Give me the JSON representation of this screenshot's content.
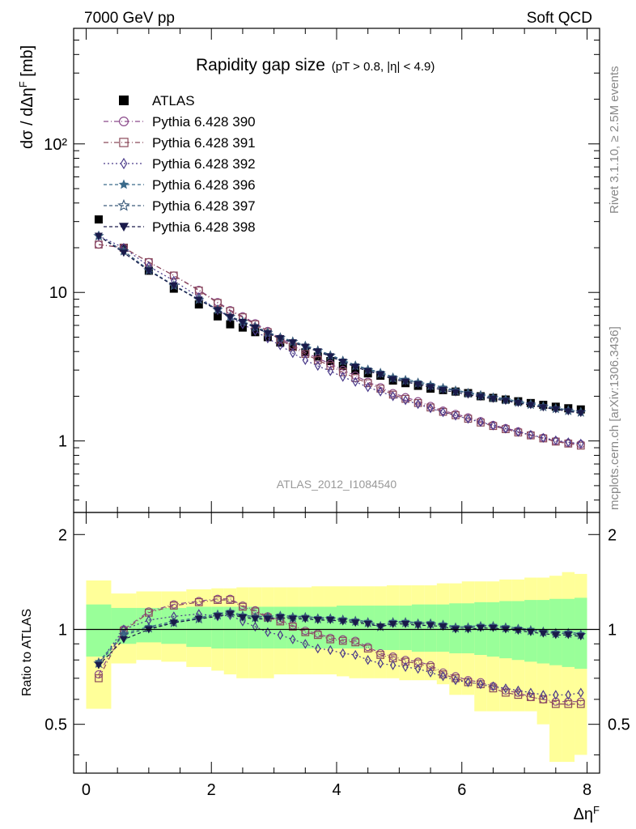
{
  "header": {
    "left": "7000 GeV pp",
    "right": "Soft QCD"
  },
  "side_labels": {
    "rivet": "Rivet 3.1.10, ≥ 2.5M events",
    "mcplots": "mcplots.cern.ch [arXiv:1306.3436]"
  },
  "analysis_id": "ATLAS_2012_I1084540",
  "chart_data": [
    {
      "type": "scatter",
      "panel": "main",
      "title": "Rapidity gap size",
      "subtitle": "(pT > 0.8, |η| < 4.9)",
      "ylabel": "dσ / dΔηF [mb]",
      "xlabel": "",
      "xlim": [
        -0.2,
        8.2
      ],
      "ylim": [
        0.33,
        600
      ],
      "yscale": "log",
      "ytick_labels": [
        "1",
        "10",
        "10²"
      ],
      "legend_position": "upper-left",
      "x": [
        0.2,
        0.6,
        1.0,
        1.4,
        1.8,
        2.1,
        2.3,
        2.5,
        2.7,
        2.9,
        3.1,
        3.3,
        3.5,
        3.7,
        3.9,
        4.1,
        4.3,
        4.5,
        4.7,
        4.9,
        5.1,
        5.3,
        5.5,
        5.7,
        5.9,
        6.1,
        6.3,
        6.5,
        6.7,
        6.9,
        7.1,
        7.3,
        7.5,
        7.7,
        7.9
      ],
      "series": [
        {
          "name": "ATLAS",
          "color": "#000000",
          "marker": "filled-square",
          "values": [
            31,
            20,
            14,
            10.6,
            8.3,
            6.9,
            6.1,
            5.8,
            5.4,
            5.0,
            4.6,
            4.3,
            3.95,
            3.7,
            3.45,
            3.2,
            3.0,
            2.85,
            2.75,
            2.55,
            2.45,
            2.35,
            2.25,
            2.2,
            2.15,
            2.1,
            2.0,
            1.95,
            1.9,
            1.85,
            1.8,
            1.75,
            1.7,
            1.66,
            1.63
          ]
        },
        {
          "name": "Pythia 6.428 390",
          "color": "#8b4a8b",
          "marker": "open-circle",
          "values": [
            21,
            20,
            16,
            13,
            10.4,
            8.6,
            7.6,
            6.9,
            6.2,
            5.5,
            4.9,
            4.4,
            3.95,
            3.6,
            3.3,
            3.0,
            2.75,
            2.5,
            2.3,
            2.1,
            1.97,
            1.85,
            1.72,
            1.6,
            1.52,
            1.44,
            1.36,
            1.28,
            1.22,
            1.16,
            1.1,
            1.05,
            1.0,
            0.97,
            0.95
          ]
        },
        {
          "name": "Pythia 6.428 391",
          "color": "#8b4a5a",
          "marker": "open-square",
          "values": [
            21,
            20,
            16,
            13,
            10.3,
            8.5,
            7.5,
            6.8,
            6.1,
            5.4,
            4.8,
            4.3,
            3.85,
            3.5,
            3.2,
            2.9,
            2.65,
            2.45,
            2.25,
            2.05,
            1.92,
            1.8,
            1.68,
            1.57,
            1.49,
            1.41,
            1.33,
            1.26,
            1.2,
            1.14,
            1.09,
            1.04,
            0.99,
            0.96,
            0.93
          ]
        },
        {
          "name": "Pythia 6.428 392",
          "color": "#4a3a8a",
          "marker": "open-diamond",
          "values": [
            24,
            20,
            15,
            12,
            9.3,
            7.6,
            6.8,
            6.1,
            5.5,
            4.9,
            4.4,
            3.9,
            3.5,
            3.2,
            2.95,
            2.7,
            2.5,
            2.3,
            2.15,
            2.0,
            1.88,
            1.77,
            1.66,
            1.56,
            1.48,
            1.41,
            1.34,
            1.27,
            1.21,
            1.15,
            1.1,
            1.05,
            1.01,
            0.98,
            0.96
          ]
        },
        {
          "name": "Pythia 6.428 396",
          "color": "#3a6a8a",
          "marker": "filled-star",
          "values": [
            24,
            19,
            14.2,
            11.2,
            9.0,
            7.7,
            6.9,
            6.4,
            5.9,
            5.4,
            5.0,
            4.7,
            4.4,
            4.1,
            3.8,
            3.5,
            3.25,
            3.05,
            2.9,
            2.7,
            2.6,
            2.5,
            2.4,
            2.3,
            2.2,
            2.12,
            2.05,
            1.98,
            1.92,
            1.85,
            1.79,
            1.73,
            1.67,
            1.62,
            1.57
          ]
        },
        {
          "name": "Pythia 6.428 397",
          "color": "#3a5a7a",
          "marker": "open-star",
          "values": [
            24,
            19,
            14.1,
            11.1,
            8.95,
            7.65,
            6.85,
            6.35,
            5.85,
            5.35,
            4.95,
            4.65,
            4.35,
            4.05,
            3.75,
            3.45,
            3.2,
            3.0,
            2.85,
            2.65,
            2.55,
            2.45,
            2.35,
            2.25,
            2.17,
            2.09,
            2.02,
            1.95,
            1.89,
            1.82,
            1.76,
            1.7,
            1.65,
            1.6,
            1.56
          ]
        },
        {
          "name": "Pythia 6.428 398",
          "color": "#1a1a4a",
          "marker": "filled-triangle-down",
          "values": [
            24,
            18.5,
            14,
            11.1,
            8.9,
            7.6,
            6.8,
            6.3,
            5.8,
            5.3,
            4.9,
            4.6,
            4.3,
            4.0,
            3.7,
            3.4,
            3.15,
            2.95,
            2.8,
            2.6,
            2.5,
            2.4,
            2.3,
            2.2,
            2.12,
            2.05,
            1.98,
            1.92,
            1.86,
            1.8,
            1.74,
            1.68,
            1.63,
            1.58,
            1.54
          ]
        }
      ]
    },
    {
      "type": "line",
      "panel": "ratio",
      "ylabel": "Ratio to ATLAS",
      "xlabel": "ΔηF",
      "xlim": [
        -0.2,
        8.2
      ],
      "ylim": [
        0.35,
        2.35
      ],
      "yscale": "log",
      "ytick_labels": [
        "0.5",
        "1",
        "2"
      ],
      "xtick_labels": [
        "0",
        "2",
        "4",
        "6",
        "8"
      ],
      "bands": {
        "x_edges": [
          0.0,
          0.4,
          0.8,
          1.2,
          1.6,
          2.0,
          2.2,
          2.4,
          2.6,
          2.8,
          3.0,
          3.2,
          3.4,
          3.6,
          3.8,
          4.0,
          4.2,
          4.4,
          4.6,
          4.8,
          5.0,
          5.2,
          5.4,
          5.6,
          5.8,
          6.0,
          6.2,
          6.4,
          6.6,
          6.8,
          7.0,
          7.2,
          7.4,
          7.6,
          7.8,
          8.0
        ],
        "inner": {
          "color": "#99ff99",
          "low": [
            0.82,
            0.9,
            0.91,
            0.9,
            0.88,
            0.87,
            0.87,
            0.87,
            0.87,
            0.87,
            0.87,
            0.87,
            0.87,
            0.87,
            0.87,
            0.87,
            0.87,
            0.87,
            0.86,
            0.86,
            0.86,
            0.85,
            0.85,
            0.85,
            0.84,
            0.84,
            0.83,
            0.82,
            0.81,
            0.8,
            0.79,
            0.78,
            0.77,
            0.76,
            0.75
          ],
          "high": [
            1.2,
            1.17,
            1.17,
            1.17,
            1.18,
            1.18,
            1.18,
            1.18,
            1.18,
            1.18,
            1.18,
            1.18,
            1.18,
            1.18,
            1.18,
            1.19,
            1.19,
            1.19,
            1.19,
            1.19,
            1.19,
            1.2,
            1.2,
            1.2,
            1.21,
            1.21,
            1.22,
            1.22,
            1.23,
            1.23,
            1.24,
            1.24,
            1.25,
            1.25,
            1.26
          ]
        },
        "outer": {
          "color": "#ffff99",
          "low": [
            0.56,
            0.78,
            0.8,
            0.79,
            0.76,
            0.74,
            0.72,
            0.7,
            0.7,
            0.7,
            0.72,
            0.72,
            0.72,
            0.72,
            0.72,
            0.71,
            0.7,
            0.7,
            0.7,
            0.7,
            0.69,
            0.69,
            0.69,
            0.67,
            0.62,
            0.62,
            0.55,
            0.55,
            0.55,
            0.55,
            0.55,
            0.5,
            0.38,
            0.38,
            0.4
          ],
          "high": [
            1.43,
            1.3,
            1.32,
            1.32,
            1.34,
            1.35,
            1.35,
            1.36,
            1.36,
            1.36,
            1.36,
            1.36,
            1.36,
            1.37,
            1.37,
            1.37,
            1.37,
            1.37,
            1.37,
            1.38,
            1.38,
            1.38,
            1.38,
            1.4,
            1.4,
            1.42,
            1.42,
            1.42,
            1.44,
            1.44,
            1.46,
            1.46,
            1.48,
            1.52,
            1.5
          ]
        }
      },
      "series": [
        {
          "name": "Pythia 6.428 390",
          "color": "#8b4a8b",
          "marker": "open-circle",
          "values": [
            0.72,
            1.0,
            1.14,
            1.2,
            1.23,
            1.25,
            1.25,
            1.19,
            1.15,
            1.1,
            1.07,
            1.03,
            0.99,
            0.97,
            0.94,
            0.93,
            0.92,
            0.88,
            0.84,
            0.82,
            0.8,
            0.79,
            0.77,
            0.73,
            0.71,
            0.69,
            0.68,
            0.66,
            0.64,
            0.63,
            0.61,
            0.6,
            0.59,
            0.59,
            0.59
          ]
        },
        {
          "name": "Pythia 6.428 391",
          "color": "#8b4a5a",
          "marker": "open-square",
          "values": [
            0.7,
            0.99,
            1.13,
            1.19,
            1.22,
            1.24,
            1.24,
            1.18,
            1.14,
            1.09,
            1.06,
            1.02,
            0.98,
            0.96,
            0.93,
            0.92,
            0.91,
            0.87,
            0.83,
            0.81,
            0.79,
            0.78,
            0.76,
            0.72,
            0.7,
            0.68,
            0.67,
            0.65,
            0.63,
            0.62,
            0.61,
            0.6,
            0.58,
            0.58,
            0.58
          ]
        },
        {
          "name": "Pythia 6.428 392",
          "color": "#4a3a8a",
          "marker": "open-diamond",
          "values": [
            0.78,
            1.0,
            1.07,
            1.1,
            1.12,
            1.1,
            1.11,
            1.06,
            1.02,
            0.98,
            0.96,
            0.93,
            0.9,
            0.87,
            0.86,
            0.84,
            0.83,
            0.8,
            0.78,
            0.77,
            0.76,
            0.75,
            0.73,
            0.71,
            0.69,
            0.68,
            0.67,
            0.66,
            0.65,
            0.64,
            0.63,
            0.62,
            0.62,
            0.62,
            0.63
          ]
        },
        {
          "name": "Pythia 6.428 396",
          "color": "#3a6a8a",
          "marker": "filled-star",
          "values": [
            0.79,
            0.97,
            1.02,
            1.06,
            1.09,
            1.12,
            1.14,
            1.11,
            1.1,
            1.1,
            1.11,
            1.1,
            1.1,
            1.09,
            1.09,
            1.08,
            1.07,
            1.06,
            1.03,
            1.06,
            1.06,
            1.05,
            1.05,
            1.04,
            1.02,
            1.02,
            1.03,
            1.03,
            1.02,
            1.01,
            1.0,
            0.99,
            0.98,
            0.98,
            0.97
          ]
        },
        {
          "name": "Pythia 6.428 397",
          "color": "#3a5a7a",
          "marker": "open-star",
          "values": [
            0.78,
            0.96,
            1.01,
            1.05,
            1.08,
            1.11,
            1.13,
            1.1,
            1.09,
            1.09,
            1.1,
            1.09,
            1.09,
            1.08,
            1.08,
            1.07,
            1.06,
            1.05,
            1.02,
            1.05,
            1.05,
            1.04,
            1.04,
            1.03,
            1.01,
            1.01,
            1.02,
            1.02,
            1.01,
            1.0,
            0.99,
            0.98,
            0.97,
            0.97,
            0.96
          ]
        },
        {
          "name": "Pythia 6.428 398",
          "color": "#1a1a4a",
          "marker": "filled-triangle-down",
          "values": [
            0.77,
            0.93,
            1.0,
            1.05,
            1.08,
            1.1,
            1.12,
            1.09,
            1.08,
            1.08,
            1.09,
            1.08,
            1.08,
            1.07,
            1.07,
            1.06,
            1.05,
            1.04,
            1.02,
            1.04,
            1.04,
            1.03,
            1.03,
            1.02,
            1.0,
            1.0,
            1.01,
            1.01,
            1.0,
            0.99,
            0.98,
            0.97,
            0.96,
            0.96,
            0.95
          ]
        }
      ]
    }
  ]
}
